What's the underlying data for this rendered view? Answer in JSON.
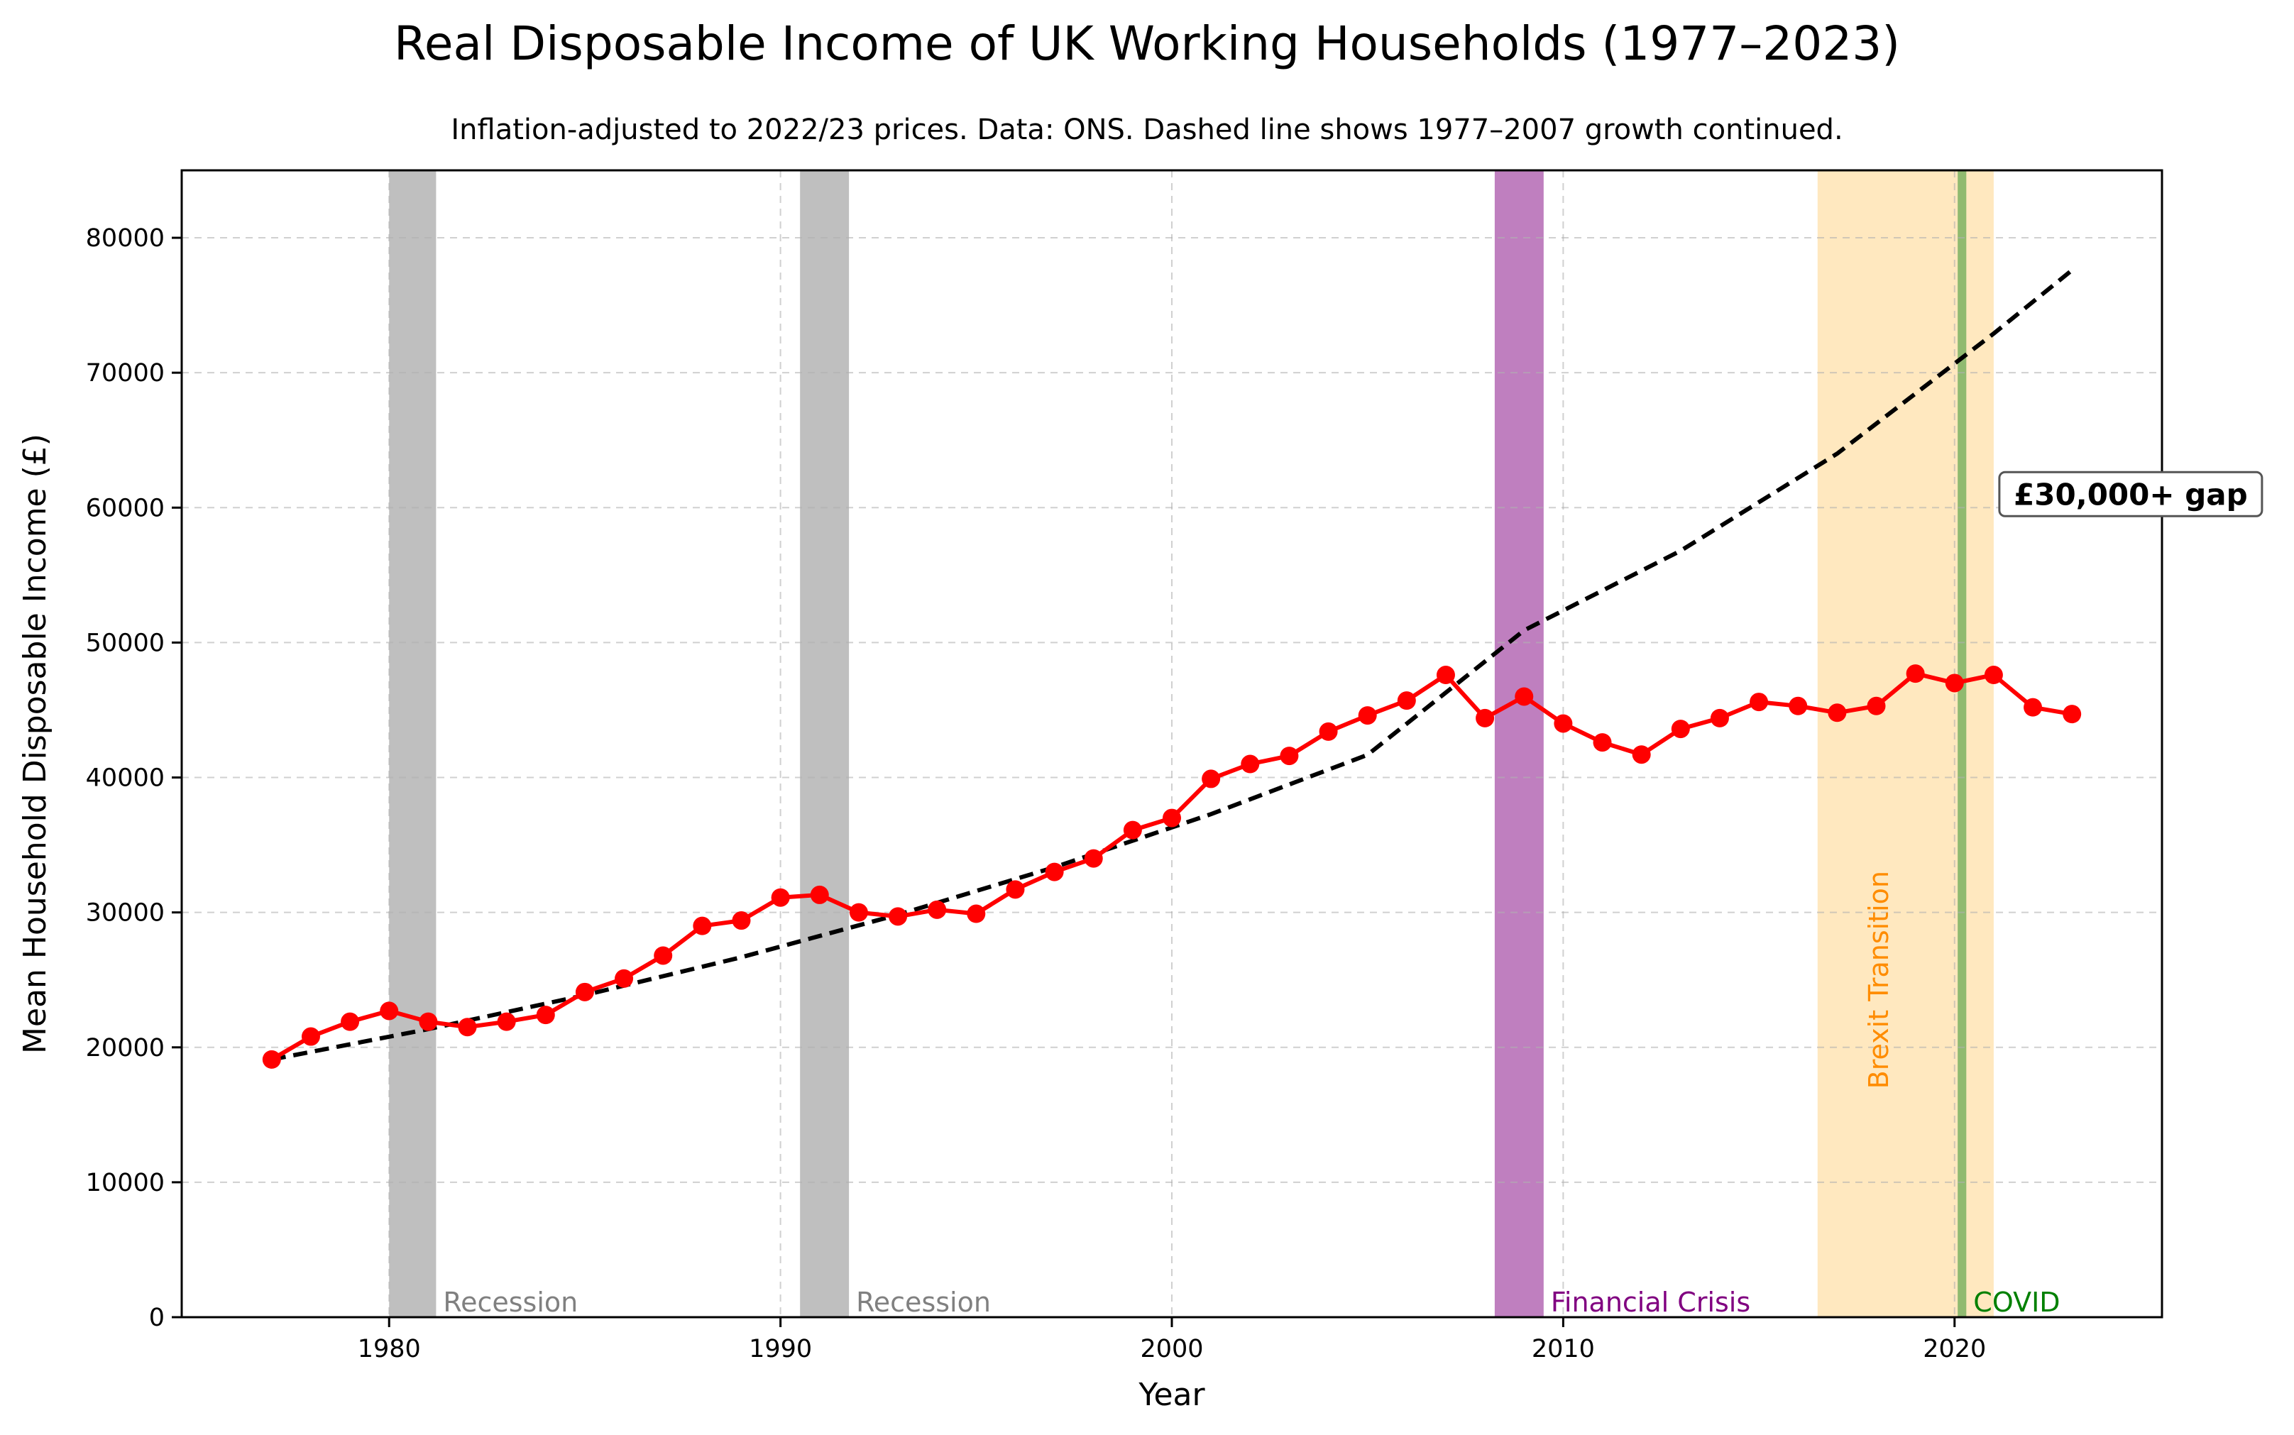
{
  "chart_data": {
    "type": "line",
    "title": "Real Disposable Income of UK Working Households (1977–2023)",
    "subtitle": "Inflation-adjusted to 2022/23 prices. Data: ONS. Dashed line shows 1977–2007 growth continued.",
    "xlabel": "Year",
    "ylabel": "Mean Household Disposable Income (£)",
    "xlim": [
      1974.7,
      2025.3
    ],
    "ylim": [
      0,
      85000
    ],
    "x_ticks": [
      1980,
      1990,
      2000,
      2010,
      2020
    ],
    "y_ticks": [
      0,
      10000,
      20000,
      30000,
      40000,
      50000,
      60000,
      70000,
      80000
    ],
    "grid": true,
    "series": [
      {
        "style": "solid-line-with-markers",
        "color": "#ff0000",
        "x": [
          1977,
          1978,
          1979,
          1980,
          1981,
          1982,
          1983,
          1984,
          1985,
          1986,
          1987,
          1988,
          1989,
          1990,
          1991,
          1992,
          1993,
          1994,
          1995,
          1996,
          1997,
          1998,
          1999,
          2000,
          2001,
          2002,
          2003,
          2004,
          2005,
          2006,
          2007,
          2008,
          2009,
          2010,
          2011,
          2012,
          2013,
          2014,
          2015,
          2016,
          2017,
          2018,
          2019,
          2020,
          2021,
          2022,
          2023
        ],
        "values": [
          19100,
          20800,
          21900,
          22700,
          21900,
          21500,
          21900,
          22400,
          24100,
          25100,
          26800,
          29000,
          29400,
          31100,
          31300,
          30000,
          29700,
          30200,
          29900,
          31700,
          33000,
          34000,
          36100,
          37000,
          39900,
          41000,
          41600,
          43400,
          44600,
          45700,
          47600,
          44400,
          46000,
          44000,
          42600,
          41700,
          43600,
          44400,
          45600,
          45300,
          44800,
          45300,
          47700,
          47000,
          47600,
          45200,
          44700
        ]
      },
      {
        "style": "dashed-line",
        "color": "#000000",
        "x": [
          1977,
          1981,
          1985,
          1989,
          1993,
          1997,
          2001,
          2005,
          2009,
          2013,
          2017,
          2021,
          2023
        ],
        "values": [
          19100,
          21350,
          23870,
          26680,
          29830,
          33350,
          37280,
          41680,
          50900,
          56800,
          64000,
          72900,
          77600
        ]
      }
    ],
    "periods": [
      {
        "start": 1980.0,
        "end": 1981.2,
        "color": "#808080",
        "opacity": 0.5,
        "label": "Recession",
        "label_color": "#808080"
      },
      {
        "start": 1990.5,
        "end": 1991.75,
        "color": "#808080",
        "opacity": 0.5,
        "label": "Recession",
        "label_color": "#808080"
      },
      {
        "start": 2008.25,
        "end": 2009.5,
        "color": "#800080",
        "opacity": 0.5,
        "label": "Financial Crisis",
        "label_color": "#800080"
      },
      {
        "start": 2016.5,
        "end": 2021.0,
        "color": "#ffa500",
        "opacity": 0.25,
        "label": "Brexit Transition",
        "label_color": "#ff8c00"
      },
      {
        "start": 2020.08,
        "end": 2020.3,
        "color": "#228b22",
        "opacity": 0.5,
        "label": "COVID",
        "label_color": "#008000"
      }
    ],
    "annotation": {
      "text": "£30,000+ gap",
      "x": 2024.5,
      "y": 61000
    }
  }
}
